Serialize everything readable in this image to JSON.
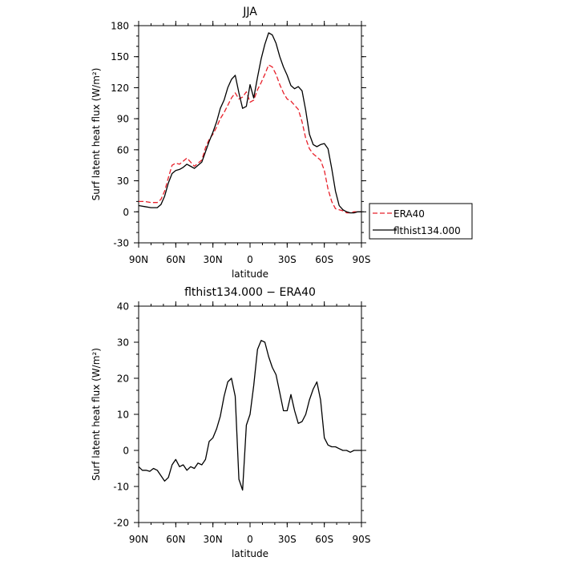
{
  "chart_data": [
    {
      "type": "line",
      "title": "JJA",
      "xlabel": "latitude",
      "ylabel": "Surf latent heat flux (W/m²)",
      "xlim": [
        90,
        -90
      ],
      "ylim": [
        -30,
        180
      ],
      "xticks": [
        90,
        60,
        30,
        0,
        -30,
        -60,
        -90
      ],
      "xtick_labels": [
        "90N",
        "60N",
        "30N",
        "0",
        "30S",
        "60S",
        "90S"
      ],
      "yticks": [
        -30,
        0,
        30,
        60,
        90,
        120,
        150,
        180
      ],
      "ytick_labels": [
        "-30",
        "0",
        "30",
        "60",
        "90",
        "120",
        "150",
        "180"
      ],
      "legend_position": "outside right, bottom",
      "series": [
        {
          "name": "ERA40",
          "color": "#e8202a",
          "style": "dashed",
          "x": [
            90,
            85,
            80,
            75,
            72,
            69,
            66,
            63,
            60,
            57,
            54,
            51,
            48,
            45,
            42,
            39,
            36,
            33,
            30,
            27,
            24,
            21,
            18,
            15,
            12,
            9,
            6,
            3,
            0,
            -3,
            -6,
            -9,
            -12,
            -15,
            -18,
            -21,
            -24,
            -27,
            -30,
            -33,
            -36,
            -39,
            -42,
            -45,
            -48,
            -51,
            -54,
            -57,
            -60,
            -63,
            -66,
            -69,
            -72,
            -75,
            -78,
            -81,
            -84,
            -87,
            -90
          ],
          "y": [
            10,
            10,
            9,
            9,
            12,
            20,
            33,
            45,
            47,
            46,
            49,
            52,
            48,
            44,
            47,
            50,
            62,
            70,
            75,
            82,
            90,
            96,
            103,
            110,
            115,
            109,
            111,
            116,
            106,
            108,
            118,
            125,
            133,
            142,
            140,
            133,
            123,
            115,
            109,
            107,
            103,
            99,
            87,
            71,
            61,
            56,
            53,
            50,
            40,
            22,
            10,
            3,
            2,
            1,
            -1,
            -1,
            0,
            0,
            0
          ]
        },
        {
          "name": "flthist134.000",
          "color": "#000000",
          "style": "solid",
          "x": [
            90,
            85,
            80,
            75,
            72,
            69,
            66,
            63,
            60,
            57,
            54,
            51,
            48,
            45,
            42,
            39,
            36,
            33,
            30,
            27,
            24,
            21,
            18,
            15,
            12,
            9,
            6,
            3,
            0,
            -3,
            -6,
            -9,
            -12,
            -15,
            -18,
            -21,
            -24,
            -27,
            -30,
            -33,
            -36,
            -39,
            -42,
            -45,
            -48,
            -51,
            -54,
            -57,
            -60,
            -63,
            -66,
            -69,
            -72,
            -75,
            -78,
            -81,
            -84,
            -87,
            -90
          ],
          "y": [
            6,
            5,
            4,
            4,
            7,
            15,
            28,
            37,
            40,
            41,
            43,
            46,
            44,
            42,
            45,
            48,
            58,
            68,
            77,
            87,
            100,
            108,
            120,
            128,
            132,
            115,
            100,
            102,
            123,
            110,
            130,
            148,
            162,
            173,
            171,
            163,
            150,
            140,
            132,
            122,
            119,
            121,
            117,
            98,
            75,
            65,
            63,
            65,
            66,
            61,
            42,
            20,
            6,
            2,
            0,
            -1,
            -1,
            0,
            0
          ]
        }
      ]
    },
    {
      "type": "line",
      "title": "flthist134.000 − ERA40",
      "xlabel": "latitude",
      "ylabel": "Surf latent heat flux (W/m²)",
      "xlim": [
        90,
        -90
      ],
      "ylim": [
        -20,
        40
      ],
      "xticks": [
        90,
        60,
        30,
        0,
        -30,
        -60,
        -90
      ],
      "xtick_labels": [
        "90N",
        "60N",
        "30N",
        "0",
        "30S",
        "60S",
        "90S"
      ],
      "yticks": [
        -20,
        -10,
        0,
        10,
        20,
        30,
        40
      ],
      "ytick_labels": [
        "-20",
        "-10",
        "0",
        "10",
        "20",
        "30",
        "40"
      ],
      "series": [
        {
          "color": "#000000",
          "style": "solid",
          "x": [
            90,
            87,
            84,
            81,
            78,
            75,
            72,
            69,
            66,
            63,
            60,
            57,
            54,
            51,
            48,
            45,
            42,
            39,
            36,
            33,
            30,
            27,
            24,
            21,
            18,
            15,
            12,
            9,
            6,
            3,
            0,
            -3,
            -6,
            -9,
            -12,
            -15,
            -18,
            -21,
            -24,
            -27,
            -30,
            -33,
            -36,
            -39,
            -42,
            -45,
            -48,
            -51,
            -54,
            -57,
            -60,
            -63,
            -66,
            -69,
            -72,
            -75,
            -78,
            -81,
            -84,
            -87,
            -90
          ],
          "y": [
            -4.5,
            -5.5,
            -5.5,
            -5.8,
            -5,
            -5.5,
            -7,
            -8.5,
            -7.5,
            -4,
            -2.5,
            -4.5,
            -4,
            -5.5,
            -4.5,
            -5,
            -3.5,
            -4,
            -2.5,
            2.5,
            3.5,
            6,
            9.5,
            15,
            19,
            20,
            15,
            -8,
            -11,
            7,
            10,
            18,
            28,
            30.5,
            30,
            26,
            23,
            21,
            16,
            11,
            11,
            15.5,
            11,
            7.5,
            8,
            10,
            14,
            17,
            19,
            14,
            3.5,
            1.5,
            1,
            1,
            0.5,
            0,
            0,
            -0.5,
            0,
            0,
            0
          ]
        }
      ]
    }
  ]
}
